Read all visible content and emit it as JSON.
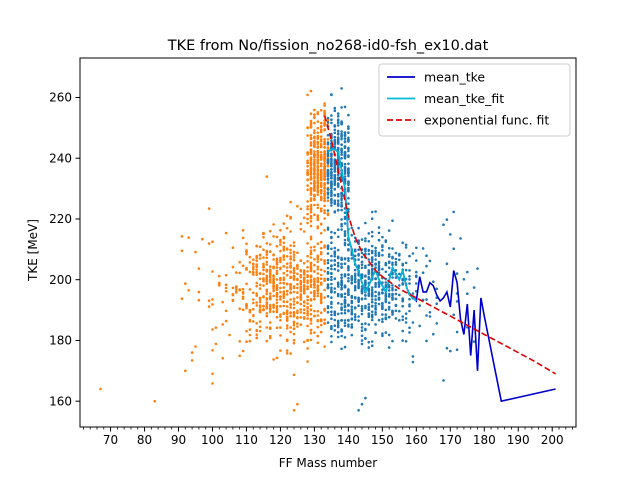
{
  "chart_data": {
    "type": "scatter",
    "title": "TKE from  No/fission_no268-id0-fsh_ex10.dat",
    "xlabel": "FF Mass number",
    "ylabel": "TKE [MeV]",
    "xlim": [
      61,
      207
    ],
    "ylim": [
      151.5,
      273
    ],
    "x_major_ticks": [
      70,
      80,
      90,
      100,
      110,
      120,
      130,
      140,
      150,
      160,
      170,
      180,
      190,
      200
    ],
    "x_minor_step": 2,
    "y_major_ticks": [
      160,
      180,
      200,
      220,
      240,
      260
    ],
    "legend_position": "top-right",
    "legend": [
      {
        "label": "mean_tke",
        "color": "#0000cc",
        "style": "solid"
      },
      {
        "label": "mean_tke_fit",
        "color": "#00bcd4",
        "style": "solid"
      },
      {
        "label": "exponential func. fit",
        "color": "#e00000",
        "style": "dashed"
      }
    ],
    "scatter_groups": [
      {
        "color": "#ff7f0e",
        "x_range": [
          66,
          134
        ],
        "note_center": [
          122,
          198
        ]
      },
      {
        "color": "#1f77b4",
        "x_range": [
          134,
          202
        ],
        "note_center": [
          145,
          198
        ]
      }
    ],
    "mean_tke": {
      "x": [
        134,
        135,
        136,
        137,
        138,
        139,
        140,
        141,
        142,
        143,
        144,
        145,
        146,
        147,
        148,
        149,
        150,
        151,
        152,
        153,
        154,
        155,
        156,
        157,
        158,
        159,
        160,
        161,
        162,
        163,
        164,
        165,
        166,
        167,
        168,
        169,
        170,
        171,
        172,
        173,
        174,
        175,
        176,
        177,
        178,
        179,
        180,
        185,
        201
      ],
      "y": [
        242,
        243,
        243,
        242,
        236,
        230,
        214,
        210,
        205,
        203,
        199,
        196,
        198,
        201,
        203,
        200,
        198,
        196,
        200,
        204,
        202,
        200,
        203,
        198,
        195,
        194,
        193,
        201,
        196,
        196,
        199,
        198,
        195,
        193,
        194,
        196,
        191,
        203,
        199,
        187,
        182,
        192,
        175,
        190,
        170,
        194,
        188,
        160,
        164
      ]
    },
    "mean_tke_fit": {
      "x": [
        134,
        135,
        136,
        137,
        138,
        139,
        140,
        141,
        142,
        143,
        144,
        145,
        146,
        147,
        148,
        149,
        150,
        151,
        152,
        153,
        154,
        155,
        156,
        157,
        158,
        159,
        160
      ],
      "y": [
        242,
        243,
        243,
        242,
        236,
        230,
        214,
        210,
        205,
        203,
        199,
        196,
        198,
        201,
        203,
        200,
        198,
        196,
        200,
        204,
        202,
        200,
        203,
        198,
        195,
        194,
        193
      ]
    },
    "exponential_fit": {
      "x": [
        133,
        134,
        135,
        136,
        137,
        138,
        139,
        140,
        142,
        144,
        146,
        148,
        150,
        155,
        160,
        165,
        170,
        175,
        180,
        185,
        190,
        195,
        201
      ],
      "y": [
        254,
        250,
        246,
        241,
        236,
        231,
        226,
        221,
        214,
        209,
        206,
        203,
        201,
        197,
        194,
        191,
        188,
        185,
        182,
        179,
        176,
        173,
        169
      ]
    }
  }
}
